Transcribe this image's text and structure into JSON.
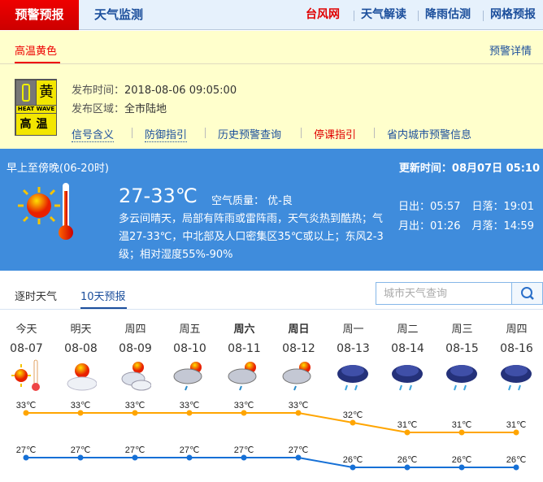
{
  "topnav": {
    "active": "预警预报",
    "monitor": "天气监测",
    "links": [
      {
        "label": "台风网",
        "color": "#e00000"
      },
      {
        "label": "天气解读",
        "color": "#1c4f9c"
      },
      {
        "label": "降雨估测",
        "color": "#1c4f9c"
      },
      {
        "label": "网格预报",
        "color": "#1c4f9c"
      }
    ]
  },
  "warning": {
    "tab": "高温黄色",
    "detail_link": "预警详情",
    "badge": {
      "level": "黄",
      "en": "HEAT WAVE",
      "cn": "高温"
    },
    "publish_time_label": "发布时间：",
    "publish_time": "2018-08-06 09:05:00",
    "area_label": "发布区域：",
    "area": "全市陆地",
    "links": [
      {
        "label": "信号含义",
        "color": "#1c4f9c"
      },
      {
        "label": "防御指引",
        "color": "#1c4f9c"
      },
      {
        "label": "历史预警查询",
        "color": "#1c4f9c"
      },
      {
        "label": "停课指引",
        "color": "#e00000"
      },
      {
        "label": "省内城市预警信息",
        "color": "#1c4f9c"
      }
    ]
  },
  "today": {
    "period": "早上至傍晚(06-20时)",
    "update_label": "更新时间：",
    "update_time": "08月07日 05:10",
    "temp": "27-33℃",
    "aqi_label": "空气质量：",
    "aqi": "优-良",
    "desc": "多云间晴天，局部有阵雨或雷阵雨，天气炎热到酷热；气温27-33℃，中北部及人口密集区35℃或以上；东风2-3级；相对湿度55%-90%",
    "sunrise_label": "日出：",
    "sunrise": "05:57",
    "sunset_label": "日落：",
    "sunset": "19:01",
    "moonrise_label": "月出：",
    "moonrise": "01:26",
    "moonset_label": "月落：",
    "moonset": "14:59",
    "icon": "sunny-hot-icon"
  },
  "forecast_tabs": [
    "逐时天气",
    "10天预报"
  ],
  "search": {
    "placeholder": "城市天气查询",
    "icon": "search-icon"
  },
  "days": [
    {
      "name": "今天",
      "date": "08-07",
      "icon": "sunny-hot",
      "bold": false
    },
    {
      "name": "明天",
      "date": "08-08",
      "icon": "partly-cloudy",
      "bold": false
    },
    {
      "name": "周四",
      "date": "08-09",
      "icon": "cloudy",
      "bold": false
    },
    {
      "name": "周五",
      "date": "08-10",
      "icon": "shower",
      "bold": false
    },
    {
      "name": "周六",
      "date": "08-11",
      "icon": "shower",
      "bold": true
    },
    {
      "name": "周日",
      "date": "08-12",
      "icon": "shower",
      "bold": true
    },
    {
      "name": "周一",
      "date": "08-13",
      "icon": "rain",
      "bold": false
    },
    {
      "name": "周二",
      "date": "08-14",
      "icon": "rain",
      "bold": false
    },
    {
      "name": "周三",
      "date": "08-15",
      "icon": "rain",
      "bold": false
    },
    {
      "name": "周四",
      "date": "08-16",
      "icon": "rain",
      "bold": false
    }
  ],
  "chart_data": {
    "type": "line",
    "categories": [
      "08-07",
      "08-08",
      "08-09",
      "08-10",
      "08-11",
      "08-12",
      "08-13",
      "08-14",
      "08-15",
      "08-16"
    ],
    "unit": "℃",
    "series": [
      {
        "key": "high",
        "values": [
          33,
          33,
          33,
          33,
          33,
          33,
          32,
          31,
          31,
          31
        ],
        "color": "#ffa500"
      },
      {
        "key": "low",
        "values": [
          27,
          27,
          27,
          27,
          27,
          27,
          26,
          26,
          26,
          26
        ],
        "color": "#1670d6"
      }
    ]
  }
}
